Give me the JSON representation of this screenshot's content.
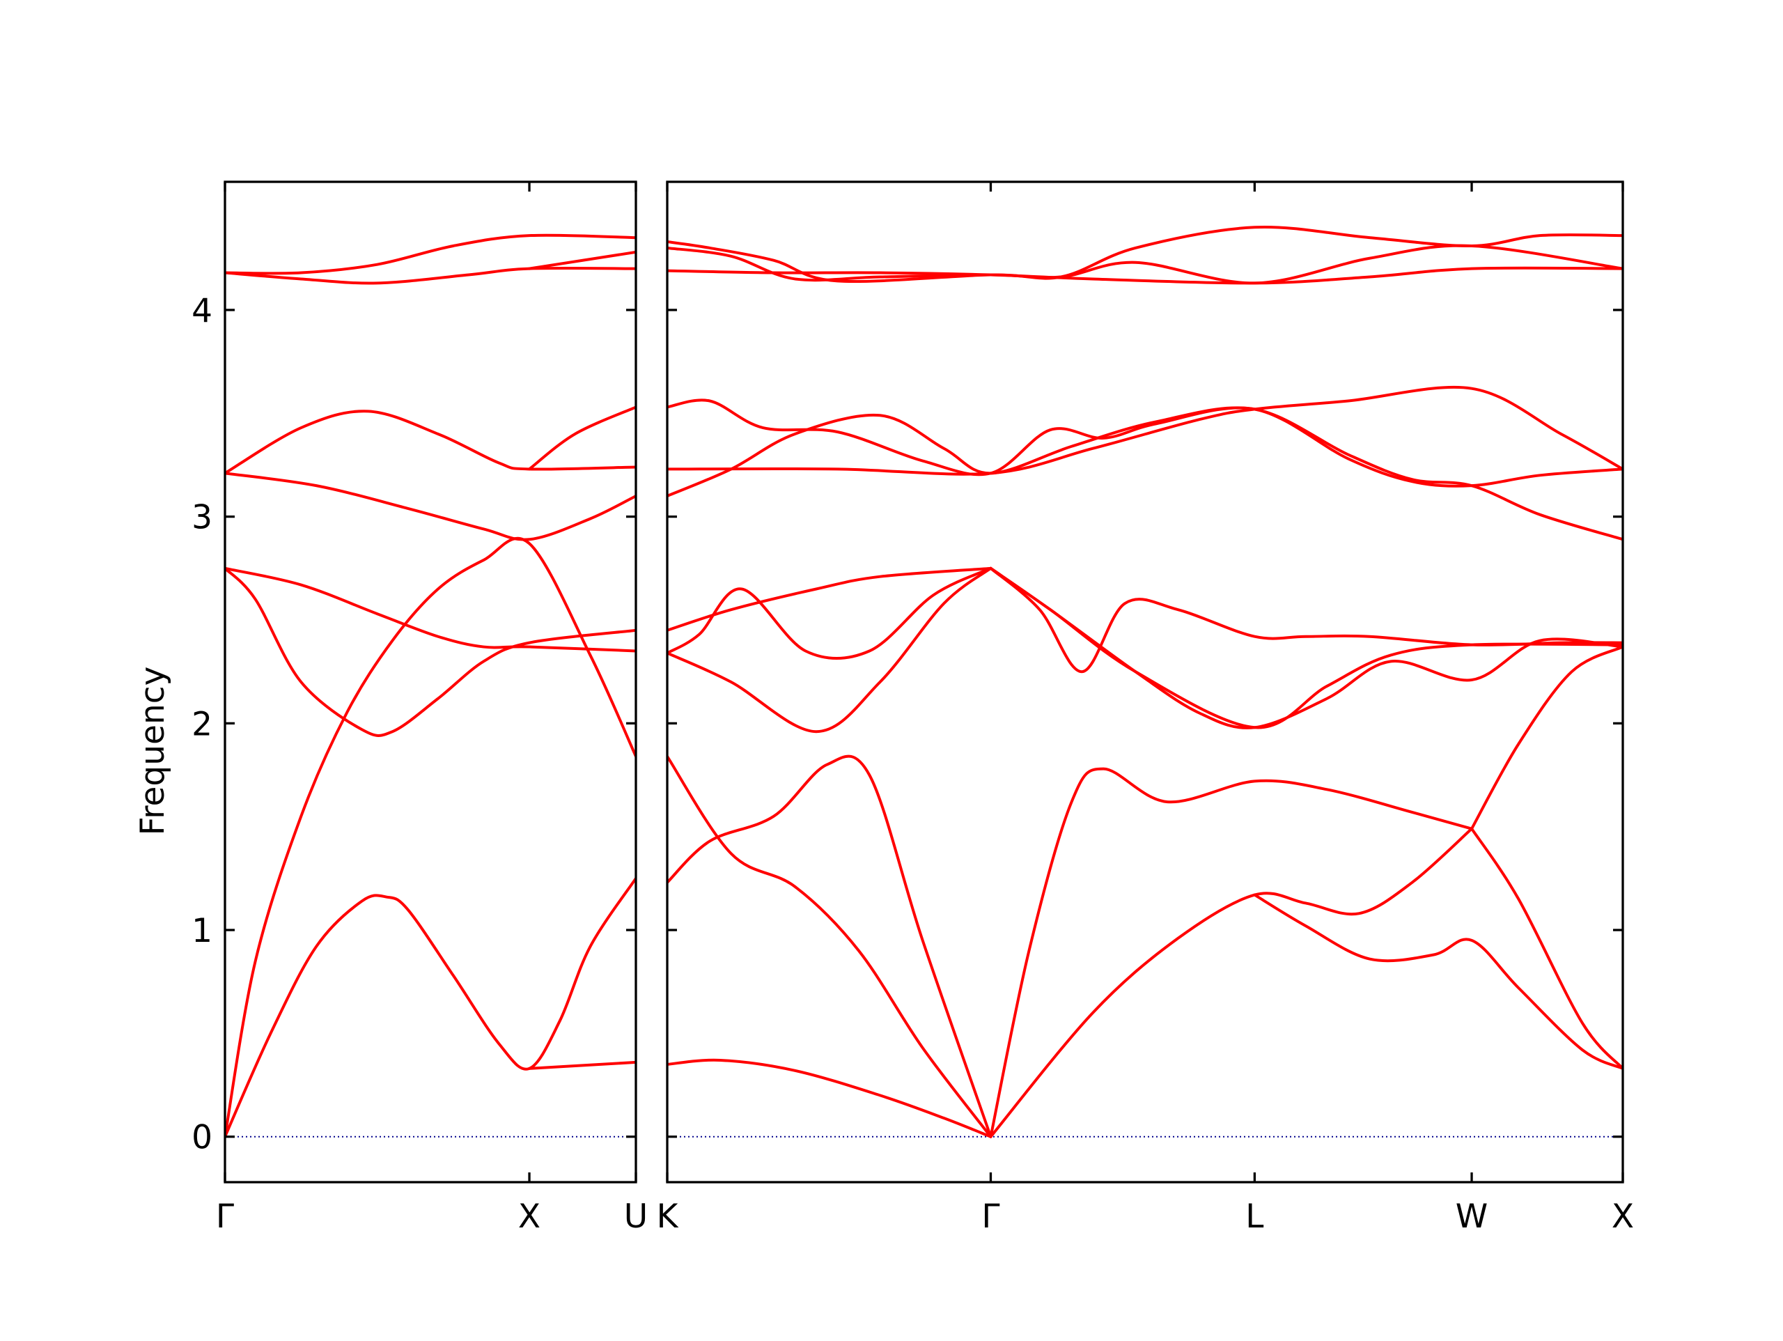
{
  "chart_data": {
    "type": "line",
    "ylabel": "Frequency",
    "ylim": [
      -0.22,
      4.62
    ],
    "yticks": [
      0,
      1,
      2,
      3,
      4
    ],
    "grid": false,
    "colors": {
      "bands": "#ff0000",
      "zero_line": "#00008b"
    },
    "panels": [
      {
        "id": "gamma-x-u",
        "xlim": [
          0,
          1.35
        ],
        "xtick_positions": [
          0,
          1.0,
          1.35
        ],
        "xtick_labels": [
          "Γ",
          "X",
          "U"
        ],
        "zero_line": {
          "value": 0,
          "style": "dotted"
        },
        "bands": [
          {
            "x": [
              0,
              0.15,
              0.3,
              0.45,
              0.53,
              0.6,
              0.75,
              0.9,
              1.0,
              1.1,
              1.2,
              1.35
            ],
            "y": [
              0,
              0.5,
              0.92,
              1.14,
              1.16,
              1.1,
              0.78,
              0.45,
              0.33,
              0.56,
              0.92,
              1.25
            ]
          },
          {
            "x": [
              0,
              0.1,
              0.25,
              0.4,
              0.55,
              0.7,
              0.85,
              1.0,
              1.2,
              1.35
            ],
            "y": [
              0,
              0.85,
              1.55,
              2.05,
              2.4,
              2.65,
              2.79,
              2.87,
              2.33,
              1.84
            ]
          },
          {
            "x": [
              1.0,
              1.35
            ],
            "y": [
              0.33,
              0.36
            ]
          },
          {
            "x": [
              0,
              0.1,
              0.25,
              0.45,
              0.55,
              0.7,
              0.85,
              1.0,
              1.35
            ],
            "y": [
              2.75,
              2.6,
              2.2,
              1.97,
              1.96,
              2.12,
              2.3,
              2.39,
              2.45
            ]
          },
          {
            "x": [
              0,
              0.25,
              0.5,
              0.7,
              0.85,
              1.0,
              1.35
            ],
            "y": [
              2.75,
              2.67,
              2.53,
              2.42,
              2.37,
              2.37,
              2.35
            ]
          },
          {
            "x": [
              0,
              0.3,
              0.6,
              0.85,
              1.0,
              1.2,
              1.35
            ],
            "y": [
              3.21,
              3.15,
              3.04,
              2.94,
              2.89,
              2.99,
              3.1
            ]
          },
          {
            "x": [
              0,
              0.25,
              0.47,
              0.7,
              0.9,
              1.0,
              1.35
            ],
            "y": [
              3.21,
              3.43,
              3.51,
              3.4,
              3.26,
              3.23,
              3.24
            ]
          },
          {
            "x": [
              1.0,
              1.15,
              1.35
            ],
            "y": [
              3.23,
              3.4,
              3.53
            ]
          },
          {
            "x": [
              0,
              0.25,
              0.5,
              0.8,
              1.0,
              1.35
            ],
            "y": [
              4.18,
              4.15,
              4.13,
              4.17,
              4.2,
              4.2
            ]
          },
          {
            "x": [
              0,
              0.25,
              0.5,
              0.75,
              1.0,
              1.35
            ],
            "y": [
              4.18,
              4.18,
              4.22,
              4.31,
              4.36,
              4.35
            ]
          },
          {
            "x": [
              1.0,
              1.35
            ],
            "y": [
              4.2,
              4.28
            ]
          }
        ]
      },
      {
        "id": "k-gamma-l-w-x",
        "xlim": [
          0,
          4.49
        ],
        "xtick_positions": [
          0,
          1.52,
          2.76,
          3.78,
          4.49
        ],
        "xtick_labels": [
          "K",
          "Γ",
          "L",
          "W",
          "X"
        ],
        "zero_line": {
          "value": 0,
          "style": "dotted"
        },
        "bands": [
          {
            "x": [
              0,
              0.25,
              0.6,
              1.0,
              1.3,
              1.52
            ],
            "y": [
              0.35,
              0.37,
              0.32,
              0.2,
              0.09,
              0
            ]
          },
          {
            "x": [
              0,
              0.3,
              0.6,
              0.9,
              1.2,
              1.52
            ],
            "y": [
              1.84,
              1.37,
              1.21,
              0.9,
              0.43,
              0
            ]
          },
          {
            "x": [
              0,
              0.2,
              0.5,
              0.75,
              0.95,
              1.2,
              1.52
            ],
            "y": [
              1.23,
              1.43,
              1.55,
              1.8,
              1.75,
              0.95,
              0
            ]
          },
          {
            "x": [
              1.52,
              2.0,
              2.4,
              2.76,
              3.0,
              3.25,
              3.5,
              3.78
            ],
            "y": [
              0,
              0.6,
              0.96,
              1.17,
              1.13,
              1.08,
              1.23,
              1.49
            ]
          },
          {
            "x": [
              2.76,
              3.0,
              3.3,
              3.6,
              3.78,
              4.0,
              4.3,
              4.49
            ],
            "y": [
              1.17,
              1.02,
              0.86,
              0.88,
              0.95,
              0.72,
              0.42,
              0.33
            ]
          },
          {
            "x": [
              3.78,
              4.0,
              4.3,
              4.49
            ],
            "y": [
              1.49,
              1.15,
              0.55,
              0.33
            ]
          },
          {
            "x": [
              1.52,
              1.7,
              1.9,
              2.05,
              2.35,
              2.76,
              3.1,
              3.5,
              3.78
            ],
            "y": [
              0,
              0.9,
              1.62,
              1.78,
              1.62,
              1.72,
              1.68,
              1.57,
              1.49
            ]
          },
          {
            "x": [
              3.78,
              4.0,
              4.25,
              4.49
            ],
            "y": [
              1.49,
              1.9,
              2.25,
              2.37
            ]
          },
          {
            "x": [
              0,
              0.3,
              0.7,
              1.0,
              1.52
            ],
            "y": [
              2.45,
              2.55,
              2.65,
              2.71,
              2.75
            ]
          },
          {
            "x": [
              0,
              0.15,
              0.35,
              0.65,
              0.95,
              1.25,
              1.52
            ],
            "y": [
              2.34,
              2.43,
              2.65,
              2.35,
              2.35,
              2.62,
              2.75
            ]
          },
          {
            "x": [
              0,
              0.3,
              0.7,
              1.0,
              1.3,
              1.52
            ],
            "y": [
              2.34,
              2.2,
              1.96,
              2.2,
              2.58,
              2.75
            ]
          },
          {
            "x": [
              1.52,
              1.75,
              1.95,
              2.15,
              2.4,
              2.76,
              3.0,
              3.3,
              3.78,
              4.2,
              4.49
            ],
            "y": [
              2.75,
              2.55,
              2.25,
              2.58,
              2.55,
              2.42,
              2.42,
              2.42,
              2.38,
              2.39,
              2.39
            ]
          },
          {
            "x": [
              1.52,
              1.8,
              2.2,
              2.5,
              2.76,
              3.1,
              3.4,
              3.78,
              4.1,
              4.49
            ],
            "y": [
              2.75,
              2.55,
              2.25,
              2.05,
              1.98,
              2.12,
              2.3,
              2.21,
              2.4,
              2.37
            ]
          },
          {
            "x": [
              1.52,
              1.8,
              2.2,
              2.76,
              3.1,
              3.4,
              3.78,
              4.49
            ],
            "y": [
              2.75,
              2.55,
              2.25,
              1.98,
              2.18,
              2.33,
              2.38,
              2.38
            ]
          },
          {
            "x": [
              0,
              0.8,
              1.52,
              2.0,
              2.5,
              2.76,
              3.2,
              3.78,
              4.2,
              4.49
            ],
            "y": [
              3.23,
              3.23,
              3.21,
              3.33,
              3.47,
              3.52,
              3.56,
              3.62,
              3.4,
              3.23
            ]
          },
          {
            "x": [
              0,
              0.3,
              0.6,
              1.0,
              1.3,
              1.52,
              1.9,
              2.3,
              2.76,
              3.2,
              3.5,
              3.78,
              4.1,
              4.49
            ],
            "y": [
              3.1,
              3.23,
              3.4,
              3.49,
              3.33,
              3.21,
              3.34,
              3.46,
              3.52,
              3.3,
              3.18,
              3.15,
              3.01,
              2.89
            ]
          },
          {
            "x": [
              0,
              0.2,
              0.45,
              0.8,
              1.2,
              1.52,
              1.8,
              2.05,
              2.3,
              2.76,
              3.2,
              3.5,
              3.78,
              4.1,
              4.49
            ],
            "y": [
              3.53,
              3.56,
              3.43,
              3.41,
              3.27,
              3.21,
              3.42,
              3.38,
              3.45,
              3.52,
              3.28,
              3.17,
              3.15,
              3.2,
              3.23
            ]
          },
          {
            "x": [
              0,
              0.5,
              1.0,
              1.52,
              2.0,
              2.76,
              3.3,
              3.78,
              4.49
            ],
            "y": [
              4.19,
              4.18,
              4.18,
              4.17,
              4.15,
              4.13,
              4.16,
              4.2,
              4.2
            ]
          },
          {
            "x": [
              0,
              0.3,
              0.6,
              1.0,
              1.52,
              1.85,
              2.2,
              2.76,
              3.3,
              3.78,
              4.49
            ],
            "y": [
              4.3,
              4.26,
              4.15,
              4.16,
              4.17,
              4.16,
              4.23,
              4.13,
              4.25,
              4.31,
              4.2
            ]
          },
          {
            "x": [
              0,
              0.2,
              0.5,
              0.8,
              1.52,
              1.85,
              2.2,
              2.76,
              3.3,
              3.78,
              4.1,
              4.49
            ],
            "y": [
              4.33,
              4.3,
              4.24,
              4.14,
              4.17,
              4.16,
              4.3,
              4.4,
              4.35,
              4.31,
              4.36,
              4.36
            ]
          }
        ]
      }
    ]
  }
}
